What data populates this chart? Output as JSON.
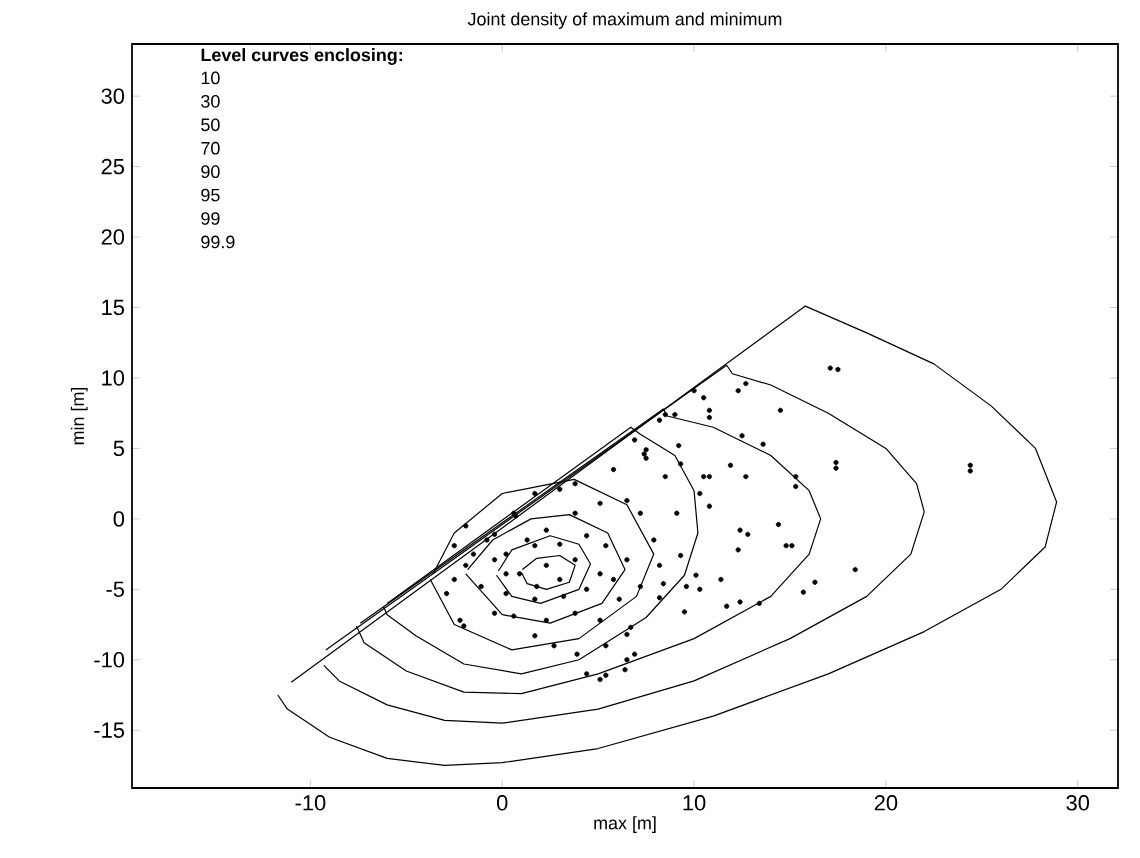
{
  "chart_data": {
    "type": "scatter",
    "title": "Joint density of maximum and minimum",
    "xlabel": "max [m]",
    "ylabel": "min [m]",
    "xlim": [
      -19.3,
      32.1
    ],
    "ylim": [
      -19.1,
      33.7
    ],
    "xticks": [
      -10,
      0,
      10,
      20,
      30
    ],
    "yticks": [
      -15,
      -10,
      -5,
      0,
      5,
      10,
      15,
      20,
      25,
      30
    ],
    "annotations": [
      "Level curves enclosing:",
      "10",
      "30",
      "50",
      "70",
      "90",
      "95",
      "99",
      "99.9"
    ],
    "series": [
      {
        "type": "line",
        "color": "#000000",
        "x": [
          -11.7,
          -11.2,
          -9,
          -6,
          -3,
          0,
          5,
          11,
          17,
          22,
          26,
          28.3,
          28.9,
          27.8,
          25.5,
          22.5,
          19,
          15.8,
          -11
        ],
        "values": [
          -12.5,
          -13.5,
          -15.5,
          -17,
          -17.5,
          -17.3,
          -16.3,
          -14,
          -11,
          -8,
          -5,
          -2,
          1.2,
          5,
          8,
          11,
          13.2,
          15.1,
          -11.6
        ]
      },
      {
        "type": "line",
        "color": "#000000",
        "x": [
          -9.3,
          -8.5,
          -6,
          -3,
          0,
          5,
          10,
          15,
          19,
          21.3,
          22,
          21.6,
          20,
          17,
          14,
          12,
          11.7,
          -9.2
        ],
        "values": [
          -10.4,
          -11.5,
          -13.2,
          -14.3,
          -14.5,
          -13.5,
          -11.5,
          -8.5,
          -5.5,
          -2.5,
          0.5,
          2.5,
          5,
          7.5,
          9.5,
          10.3,
          10.9,
          -9.3
        ]
      },
      {
        "type": "line",
        "color": "#000000",
        "x": [
          -7.6,
          -7.2,
          -5,
          -2,
          1,
          5,
          10,
          14,
          16,
          16.6,
          16,
          14,
          11,
          8.6,
          8.4,
          -7.4
        ],
        "values": [
          -7.6,
          -8.8,
          -10.8,
          -12.3,
          -12.4,
          -11,
          -8.5,
          -5.5,
          -2.5,
          0,
          2,
          4.5,
          6.5,
          7.3,
          7.8,
          -7.4
        ]
      },
      {
        "type": "line",
        "color": "#000000",
        "x": [
          -6.2,
          -6,
          -4.5,
          -2,
          1,
          4,
          7.5,
          9.5,
          10.2,
          10,
          9,
          7.2,
          6.7,
          -6
        ],
        "values": [
          -6.2,
          -6.8,
          -8.3,
          -10.3,
          -11,
          -10,
          -7,
          -4,
          -1,
          2,
          4.5,
          6,
          6.5,
          -6
        ]
      },
      {
        "type": "line",
        "color": "#000000",
        "x": [
          -3.75,
          -2.5,
          0.5,
          4,
          7,
          7.9,
          6.5,
          3.75,
          0,
          -2.5,
          -3.6
        ],
        "values": [
          -4.3,
          -7.5,
          -9.3,
          -8.5,
          -5.5,
          -2.5,
          1,
          2.8,
          1.8,
          -1,
          -3.9
        ]
      },
      {
        "type": "line",
        "color": "#000000",
        "x": [
          -1.9,
          0,
          2.5,
          5.2,
          6.4,
          5.5,
          3.5,
          1.5,
          -0.5,
          -1.8
        ],
        "values": [
          -3.9,
          -6.8,
          -7.4,
          -6,
          -3.6,
          -1,
          0.3,
          0,
          -1.5,
          -3.6
        ]
      },
      {
        "type": "line",
        "color": "#000000",
        "x": [
          -0.3,
          0.5,
          2,
          4,
          4.6,
          4,
          2.5,
          0.5,
          -0.2
        ],
        "values": [
          -4,
          -5.5,
          -6,
          -5,
          -3.2,
          -1.8,
          -1.2,
          -2.2,
          -3.7
        ]
      },
      {
        "type": "line",
        "color": "#000000",
        "x": [
          1,
          1.3,
          2.3,
          3.5,
          3.8,
          3,
          1.8,
          1.05
        ],
        "values": [
          -3.8,
          -4.6,
          -5,
          -4.5,
          -3.3,
          -2.6,
          -2.8,
          -3.6
        ]
      },
      {
        "color": "#000000",
        "x": [
          17.1,
          17.5,
          24.4,
          24.4,
          18.4,
          17.4,
          17.4,
          15.7,
          16.3,
          13.4,
          14.5,
          12.3,
          12.7,
          10.8,
          10.8,
          10,
          10.5,
          9,
          12.5,
          13.6,
          15.3,
          15.3,
          12.7,
          11.9,
          14.4,
          12.4,
          12.8,
          12.3,
          14.8,
          15.1,
          11.7,
          12.4,
          11.4,
          10.1,
          10.3,
          9.6,
          10.8,
          10.5,
          10.3,
          10.8,
          9.1,
          9.3,
          8.5,
          9.2,
          7.5,
          7.5,
          8.4,
          8.2,
          9.5,
          6.5,
          6.7,
          6.9,
          6.4,
          5.4,
          8.5,
          9.3,
          7.4,
          5.1,
          6.5,
          3.8,
          2.3,
          0.6,
          0.7,
          -0.4,
          1.3,
          3,
          4.4,
          5.4,
          6.5,
          8.2,
          5.1,
          3.8,
          2.3,
          0.9,
          -0.4,
          -1.9,
          -2.5,
          -2.9,
          -1.1,
          0.2,
          1.7,
          3.2,
          4.4,
          6.1,
          7.2,
          -0.4,
          0.6,
          2.3,
          3.8,
          5.1,
          1.7,
          2.7,
          3.9,
          5.4,
          6.5,
          4.4,
          5.1,
          -2,
          -2.2,
          1.7,
          3,
          3.8,
          5.8,
          6.9,
          8.2,
          -0.8,
          1.7,
          0.2,
          3,
          1.8,
          0.2,
          5.8,
          7.9,
          7.2,
          -2.5,
          -1.5,
          -1.9
        ],
        "values": [
          10.7,
          10.6,
          3.8,
          3.4,
          -3.6,
          4,
          3.6,
          -5.2,
          -4.5,
          -6,
          7.7,
          9.1,
          9.6,
          7.7,
          7.2,
          9.1,
          8.6,
          7.4,
          5.9,
          5.3,
          3,
          2.3,
          3,
          3.8,
          -0.4,
          -0.8,
          -1.1,
          -2.2,
          -1.9,
          -1.9,
          -6.2,
          -5.9,
          -4.3,
          -4,
          -5,
          -4.8,
          3,
          3,
          1.8,
          0.9,
          0.4,
          -2.6,
          3,
          5.2,
          4.9,
          4.3,
          -4.6,
          -5.6,
          -6.6,
          -8.2,
          -7.7,
          -9.6,
          -10.7,
          -11.1,
          7.4,
          3.9,
          4.6,
          1.1,
          1.3,
          0.4,
          -0.8,
          0.4,
          0.2,
          -1.1,
          -1.5,
          -1.8,
          -1.2,
          -1.9,
          -2.9,
          -3.3,
          -3.9,
          -2.9,
          -3.3,
          -3.9,
          -2.9,
          -3.3,
          -4.3,
          -5.3,
          -4.8,
          -5.3,
          -5.7,
          -5.5,
          -5,
          -5.7,
          -4.8,
          -6.7,
          -6.9,
          -7.2,
          -6.7,
          -7.2,
          -8.3,
          -9,
          -9.6,
          -9,
          -10,
          -11,
          -11.4,
          -7.6,
          -7.2,
          1.8,
          2.1,
          2.5,
          3.5,
          5.6,
          7,
          -1.5,
          -1.9,
          -2.5,
          -4.3,
          -4.8,
          -3.9,
          -4.3,
          -1.5,
          0.4,
          -1.9,
          -2.5,
          -0.5
        ]
      }
    ]
  }
}
